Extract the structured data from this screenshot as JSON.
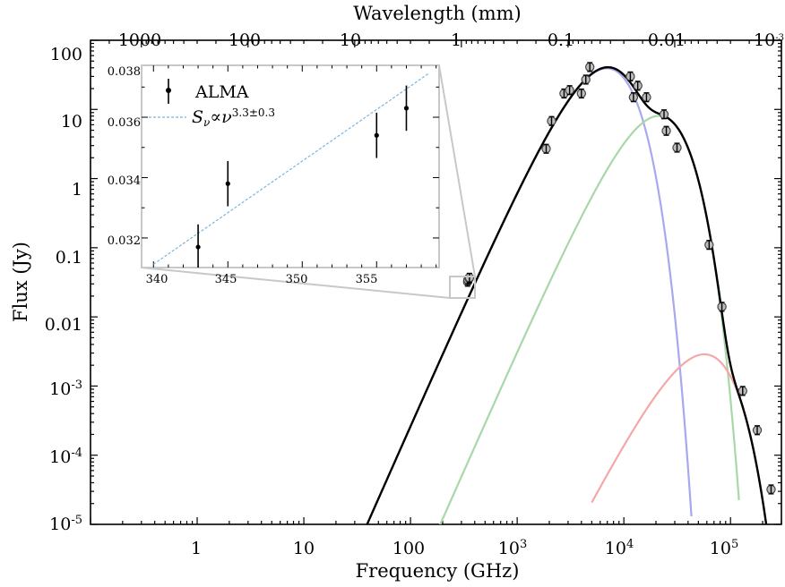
{
  "chart_data": [
    {
      "type": "line",
      "xlabel": "Frequency (GHz)",
      "ylabel": "Flux (Jy)",
      "x2label": "Wavelength (mm)",
      "xscale": "log",
      "yscale": "log",
      "xlim": [
        0.1,
        300000
      ],
      "ylim": [
        1e-05,
        100
      ],
      "x_ticks": [
        "1",
        "10",
        "100",
        "10^3",
        "10^4",
        "10^5"
      ],
      "x2_ticks": [
        "1000",
        "100",
        "10",
        "1",
        "0.1",
        "0.01",
        "10^-3"
      ],
      "y_ticks": [
        "10^-5",
        "10^-4",
        "10^-3",
        "0.01",
        "0.1",
        "1",
        "10",
        "100"
      ],
      "series": [
        {
          "color": "#000000",
          "peak_freq_ghz": 6500,
          "peak_flux_jy": 40,
          "x_range": [
            28,
            260000
          ]
        },
        {
          "color": "#a8a8f0",
          "peak_freq_ghz": 6500,
          "peak_flux_jy": 39,
          "x_range": [
            300,
            43000
          ]
        },
        {
          "color": "#a8d8a8",
          "peak_freq_ghz": 20000,
          "peak_flux_jy": 8,
          "x_range": [
            150,
            120000
          ]
        },
        {
          "color": "#f4a8a8",
          "peak_freq_ghz": 68000,
          "peak_flux_jy": 0.0027,
          "x_range": [
            5000,
            200000
          ]
        }
      ],
      "points": [
        {
          "x": 343,
          "y": 0.0322
        },
        {
          "x": 345,
          "y": 0.0343
        },
        {
          "x": 355,
          "y": 0.0359
        },
        {
          "x": 357,
          "y": 0.0368
        },
        {
          "x": 1870,
          "y": 2.7
        },
        {
          "x": 2100,
          "y": 6.8
        },
        {
          "x": 2750,
          "y": 17
        },
        {
          "x": 3100,
          "y": 19
        },
        {
          "x": 4000,
          "y": 17
        },
        {
          "x": 4400,
          "y": 27
        },
        {
          "x": 4800,
          "y": 41
        },
        {
          "x": 11500,
          "y": 30
        },
        {
          "x": 12300,
          "y": 15
        },
        {
          "x": 13500,
          "y": 22
        },
        {
          "x": 16300,
          "y": 15
        },
        {
          "x": 23800,
          "y": 8.5
        },
        {
          "x": 25000,
          "y": 4.9
        },
        {
          "x": 31500,
          "y": 2.8
        },
        {
          "x": 63000,
          "y": 0.11
        },
        {
          "x": 83000,
          "y": 0.014
        },
        {
          "x": 130000,
          "y": 0.00085
        },
        {
          "x": 178000,
          "y": 0.00023
        },
        {
          "x": 240000,
          "y": 3.2e-05
        }
      ]
    },
    {
      "type": "scatter",
      "title": "",
      "xlim": [
        339.2,
        359.2
      ],
      "ylim": [
        0.03152,
        0.03822
      ],
      "x_ticks": [
        "340",
        "345",
        "350",
        "355"
      ],
      "y_ticks": [
        "0.032",
        "0.034",
        "0.036",
        "0.038"
      ],
      "legend": {
        "data_label": "ALMA",
        "fit_label": "S",
        "fit_subscript": "ν",
        "fit_relation": "∝ν",
        "fit_exponent": "3.3±0.3"
      },
      "points": [
        {
          "x": 343,
          "y": 0.0322,
          "err": 0.00075
        },
        {
          "x": 345,
          "y": 0.0343,
          "err": 0.00075
        },
        {
          "x": 355,
          "y": 0.0359,
          "err": 0.00075
        },
        {
          "x": 357,
          "y": 0.0368,
          "err": 0.00075
        }
      ],
      "fit": {
        "x": [
          340,
          358.5
        ],
        "y": [
          0.03163,
          0.03795
        ],
        "color": "#7ab4dc"
      }
    }
  ]
}
